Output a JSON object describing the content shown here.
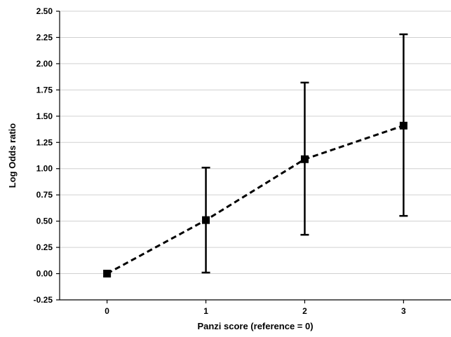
{
  "chart_data": {
    "type": "line",
    "xlabel": "Panzi score (reference = 0)",
    "ylabel": "Log Odds ratio",
    "x": [
      0,
      1,
      2,
      3
    ],
    "categories": [
      "0",
      "1",
      "2",
      "3"
    ],
    "series": [
      {
        "values": [
          0.0,
          0.51,
          1.09,
          1.41
        ],
        "error_low": [
          0.0,
          0.01,
          0.37,
          0.55
        ],
        "error_high": [
          0.0,
          1.01,
          1.82,
          2.28
        ]
      }
    ],
    "ylim": [
      -0.25,
      2.5
    ],
    "yticks": [
      "-0.25",
      "0.00",
      "0.25",
      "0.50",
      "0.75",
      "1.00",
      "1.25",
      "1.50",
      "1.75",
      "2.00",
      "2.25",
      "2.50"
    ],
    "grid": true,
    "line_style": "dashed",
    "marker": "square",
    "color": "#000000"
  }
}
